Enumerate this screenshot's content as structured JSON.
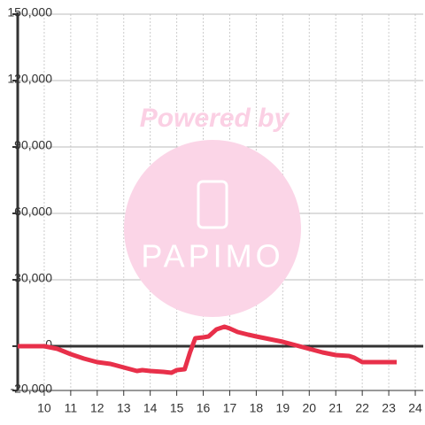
{
  "chart_data": {
    "type": "line",
    "watermark": {
      "line1": "Powered by",
      "line2": "PAPIMO"
    },
    "x": [
      9,
      10,
      10.5,
      11,
      11.5,
      12,
      12.5,
      13,
      13.5,
      13.7,
      14,
      14.5,
      14.8,
      15,
      15.3,
      15.5,
      15.7,
      16,
      16.2,
      16.5,
      16.8,
      17,
      17.3,
      17.7,
      18,
      18.5,
      19,
      19.5,
      20,
      20.5,
      21,
      21.5,
      21.7,
      22,
      22.5,
      23.3
    ],
    "series": [
      {
        "color": "#e8304a",
        "values": [
          0,
          0,
          -1200,
          -3600,
          -5600,
          -7200,
          -8000,
          -9600,
          -11200,
          -10800,
          -11200,
          -11600,
          -12000,
          -10800,
          -10400,
          -2800,
          3600,
          4000,
          4400,
          7600,
          8800,
          8000,
          6400,
          5200,
          4400,
          3200,
          2000,
          400,
          -1200,
          -2800,
          -4000,
          -4400,
          -5200,
          -7200,
          -7200,
          -7200
        ]
      }
    ],
    "xlim": [
      9,
      24.3
    ],
    "xticks": [
      10,
      11,
      12,
      13,
      14,
      15,
      16,
      17,
      18,
      19,
      20,
      21,
      22,
      23,
      24
    ],
    "ylim": [
      -20000,
      150000
    ],
    "yticks": [
      {
        "value": -20000,
        "label": "-20,000"
      },
      0,
      {
        "value": 30000,
        "label": "30,000"
      },
      {
        "value": 60000,
        "label": "60,000"
      },
      {
        "value": 90000,
        "label": "90,000"
      },
      {
        "value": 120000,
        "label": "120,000"
      },
      {
        "value": 150000,
        "label": "150,000"
      }
    ],
    "grid": true
  }
}
